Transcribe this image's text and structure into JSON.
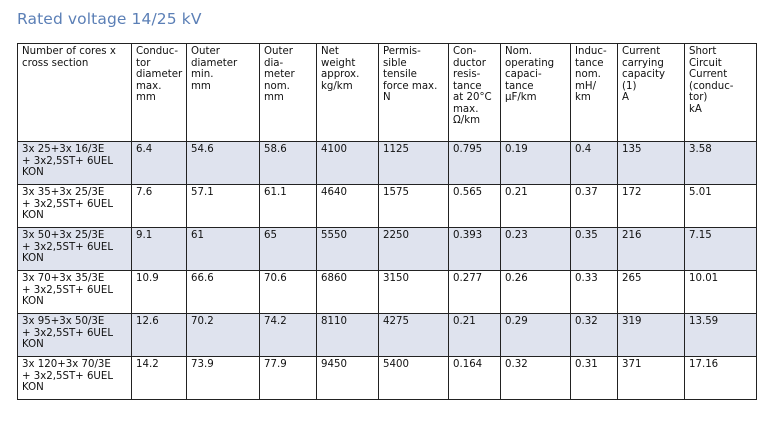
{
  "title": "Rated voltage 14/25 kV",
  "columns": [
    "Number of cores x\ncross section",
    "Conduc-\ntor\ndiameter\nmax.\nmm",
    "Outer\ndiameter\nmin.\nmm",
    "Outer\ndia-\nmeter\nnom.\nmm",
    "Net\nweight\napprox.\nkg/km",
    "Permis-\nsible\ntensile\nforce max.\nN",
    "Con-\nductor\nresis-\ntance\nat 20°C\nmax.\nΩ/km",
    "Nom.\noperating\ncapaci-\ntance\nµF/km",
    "Induc-\ntance\nnom.\nmH/\nkm",
    "Current\ncarrying\ncapacity\n(1)\nA",
    "Short\nCircuit\nCurrent\n(conduc-\ntor)\nkA"
  ],
  "rows": [
    [
      "3x 25+3x 16/3E\n+ 3x2,5ST+ 6UEL\nKON",
      "6.4",
      "54.6",
      "58.6",
      "4100",
      "1125",
      "0.795",
      "0.19",
      "0.4",
      "135",
      "3.58"
    ],
    [
      "3x 35+3x 25/3E\n+ 3x2,5ST+ 6UEL\nKON",
      "7.6",
      "57.1",
      "61.1",
      "4640",
      "1575",
      "0.565",
      "0.21",
      "0.37",
      "172",
      "5.01"
    ],
    [
      "3x 50+3x 25/3E\n+ 3x2,5ST+ 6UEL\nKON",
      "9.1",
      "61",
      "65",
      "5550",
      "2250",
      "0.393",
      "0.23",
      "0.35",
      "216",
      "7.15"
    ],
    [
      "3x 70+3x 35/3E\n+ 3x2,5ST+ 6UEL\nKON",
      "10.9",
      "66.6",
      "70.6",
      "6860",
      "3150",
      "0.277",
      "0.26",
      "0.33",
      "265",
      "10.01"
    ],
    [
      "3x 95+3x 50/3E\n+ 3x2,5ST+ 6UEL\nKON",
      "12.6",
      "70.2",
      "74.2",
      "8110",
      "4275",
      "0.21",
      "0.29",
      "0.32",
      "319",
      "13.59"
    ],
    [
      "3x 120+3x 70/3E\n+ 3x2,5ST+ 6UEL\nKON",
      "14.2",
      "73.9",
      "77.9",
      "9450",
      "5400",
      "0.164",
      "0.32",
      "0.31",
      "371",
      "17.16"
    ]
  ],
  "colors": {
    "title": "#5b7fb6",
    "row_shade": "#dfe3ee",
    "border": "#222222"
  }
}
